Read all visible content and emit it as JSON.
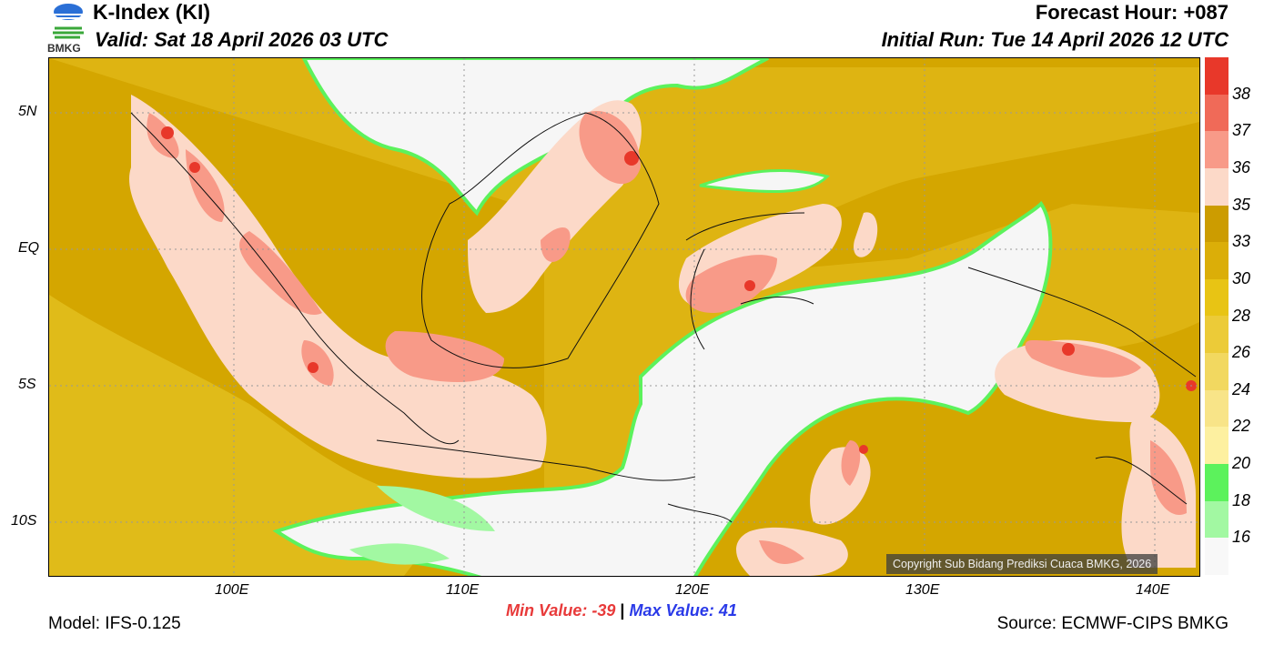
{
  "header": {
    "title": "K-Index (KI)",
    "valid": "Valid: Sat 18 April 2026 03 UTC",
    "forecast_hour": "Forecast Hour: +087",
    "initial_run": "Initial Run: Tue 14 April 2026 12 UTC"
  },
  "logo": {
    "text": "BMKG"
  },
  "axes": {
    "lat_labels": [
      "5N",
      "EQ",
      "5S",
      "10S"
    ],
    "lon_labels": [
      "100E",
      "110E",
      "120E",
      "130E",
      "140E"
    ]
  },
  "colorbar": {
    "labels": [
      "38",
      "37",
      "36",
      "35",
      "33",
      "30",
      "28",
      "26",
      "24",
      "22",
      "20",
      "18",
      "16"
    ],
    "colors": [
      "#e8382a",
      "#f06a58",
      "#f89a88",
      "#fcd9c8",
      "#cc9c00",
      "#dbae08",
      "#e8c414",
      "#eccb38",
      "#f2d860",
      "#f8e488",
      "#fdf0a0",
      "#5cf25c",
      "#a2f8a2",
      "#f8f8f8"
    ]
  },
  "stats": {
    "min_label": "Min Value:",
    "min": "-39",
    "sep": "|",
    "max_label": "Max Value:",
    "max": "41"
  },
  "footer": {
    "model": "Model: IFS-0.125",
    "source": "Source: ECMWF-CIPS BMKG",
    "copyright": "Copyright Sub Bidang Prediksi Cuaca BMKG, 2026"
  }
}
